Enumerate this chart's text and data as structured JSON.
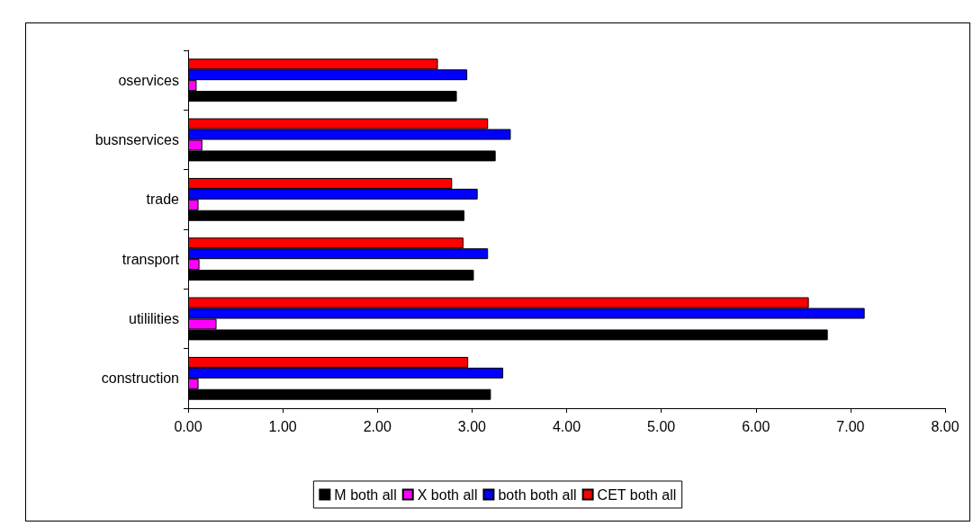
{
  "chart_data": {
    "type": "bar",
    "orientation": "horizontal",
    "categories": [
      "oservices",
      "busnservices",
      "trade",
      "transport",
      "utililities",
      "construction"
    ],
    "series": [
      {
        "name": "M both all",
        "color": "#000000",
        "values": [
          2.84,
          3.25,
          2.92,
          3.02,
          6.76,
          3.2
        ]
      },
      {
        "name": "X both all",
        "color": "#ff00ff",
        "values": [
          0.09,
          0.15,
          0.11,
          0.12,
          0.3,
          0.11
        ]
      },
      {
        "name": "both both all",
        "color": "#0000ff",
        "values": [
          2.95,
          3.41,
          3.06,
          3.17,
          7.15,
          3.33
        ]
      },
      {
        "name": "CET both all",
        "color": "#ff0000",
        "values": [
          2.64,
          3.17,
          2.79,
          2.91,
          6.56,
          2.96
        ]
      }
    ],
    "xlim": [
      0,
      8
    ],
    "xticks": [
      {
        "value": 0,
        "label": "0.00"
      },
      {
        "value": 1,
        "label": "1.00"
      },
      {
        "value": 2,
        "label": "2.00"
      },
      {
        "value": 3,
        "label": "3.00"
      },
      {
        "value": 4,
        "label": "4.00"
      },
      {
        "value": 5,
        "label": "5.00"
      },
      {
        "value": 6,
        "label": "6.00"
      },
      {
        "value": 7,
        "label": "7.00"
      },
      {
        "value": 8,
        "label": "8.00"
      }
    ],
    "grid": false,
    "legend": "bottom"
  }
}
